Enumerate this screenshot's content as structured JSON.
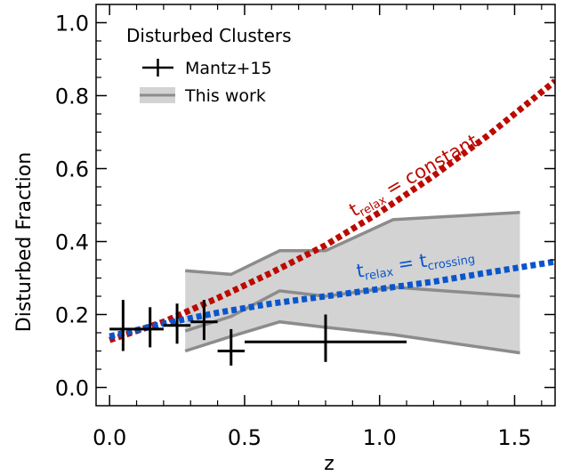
{
  "chart_data": {
    "type": "line",
    "title": "",
    "xlabel": "z",
    "ylabel": "Disturbed Fraction",
    "xlim": [
      -0.05,
      1.65
    ],
    "ylim": [
      -0.05,
      1.05
    ],
    "x_ticks": [
      "0.0",
      "0.5",
      "1.0",
      "1.5"
    ],
    "x_tick_values": [
      0.0,
      0.5,
      1.0,
      1.5
    ],
    "y_ticks": [
      "0.0",
      "0.2",
      "0.4",
      "0.6",
      "0.8",
      "1.0"
    ],
    "y_tick_values": [
      0.0,
      0.2,
      0.4,
      0.6,
      0.8,
      1.0
    ],
    "grid": false,
    "legend": {
      "title": "Disturbed Clusters",
      "placement": "top-left",
      "entries": [
        "Mantz+15",
        "This work"
      ]
    },
    "mantz15": {
      "name": "Mantz+15",
      "color": "#000000",
      "points": [
        {
          "x": 0.05,
          "y": 0.16,
          "xerr": 0.05,
          "ylo": 0.1,
          "yhi": 0.24
        },
        {
          "x": 0.15,
          "y": 0.16,
          "xerr": 0.05,
          "ylo": 0.11,
          "yhi": 0.22
        },
        {
          "x": 0.25,
          "y": 0.17,
          "xerr": 0.05,
          "ylo": 0.12,
          "yhi": 0.23
        },
        {
          "x": 0.35,
          "y": 0.18,
          "xerr": 0.05,
          "ylo": 0.13,
          "yhi": 0.24
        },
        {
          "x": 0.45,
          "y": 0.1,
          "xerr": 0.05,
          "ylo": 0.06,
          "yhi": 0.16
        },
        {
          "x": 0.8,
          "y": 0.125,
          "xerr": 0.3,
          "ylo": 0.07,
          "yhi": 0.2
        }
      ]
    },
    "this_work": {
      "name": "This work",
      "line_color": "#8c8c8c",
      "fill_color": "#d3d3d3",
      "x": [
        0.28,
        0.45,
        0.63,
        0.8,
        1.05,
        1.52
      ],
      "upper": [
        0.32,
        0.31,
        0.375,
        0.375,
        0.46,
        0.48
      ],
      "median": [
        0.155,
        0.195,
        0.265,
        0.25,
        0.275,
        0.25
      ],
      "lower": [
        0.1,
        0.14,
        0.18,
        0.165,
        0.145,
        0.095
      ]
    },
    "models": [
      {
        "name": "relax_constant",
        "label_main": "t",
        "label_sub": "relax",
        "label_rest": " = constant",
        "color": "#bb0a00",
        "x": [
          0.0,
          0.2,
          0.4,
          0.6,
          0.8,
          1.0,
          1.2,
          1.4,
          1.65
        ],
        "y": [
          0.13,
          0.18,
          0.245,
          0.315,
          0.39,
          0.48,
          0.58,
          0.69,
          0.84
        ]
      },
      {
        "name": "relax_crossing",
        "label_main": "t",
        "label_sub": "relax",
        "label_rest": " = t",
        "label_sub2": "crossing",
        "color": "#0a55cc",
        "x": [
          0.0,
          0.2,
          0.4,
          0.6,
          0.8,
          1.0,
          1.2,
          1.4,
          1.65
        ],
        "y": [
          0.14,
          0.175,
          0.205,
          0.23,
          0.25,
          0.27,
          0.29,
          0.315,
          0.345
        ]
      }
    ]
  }
}
